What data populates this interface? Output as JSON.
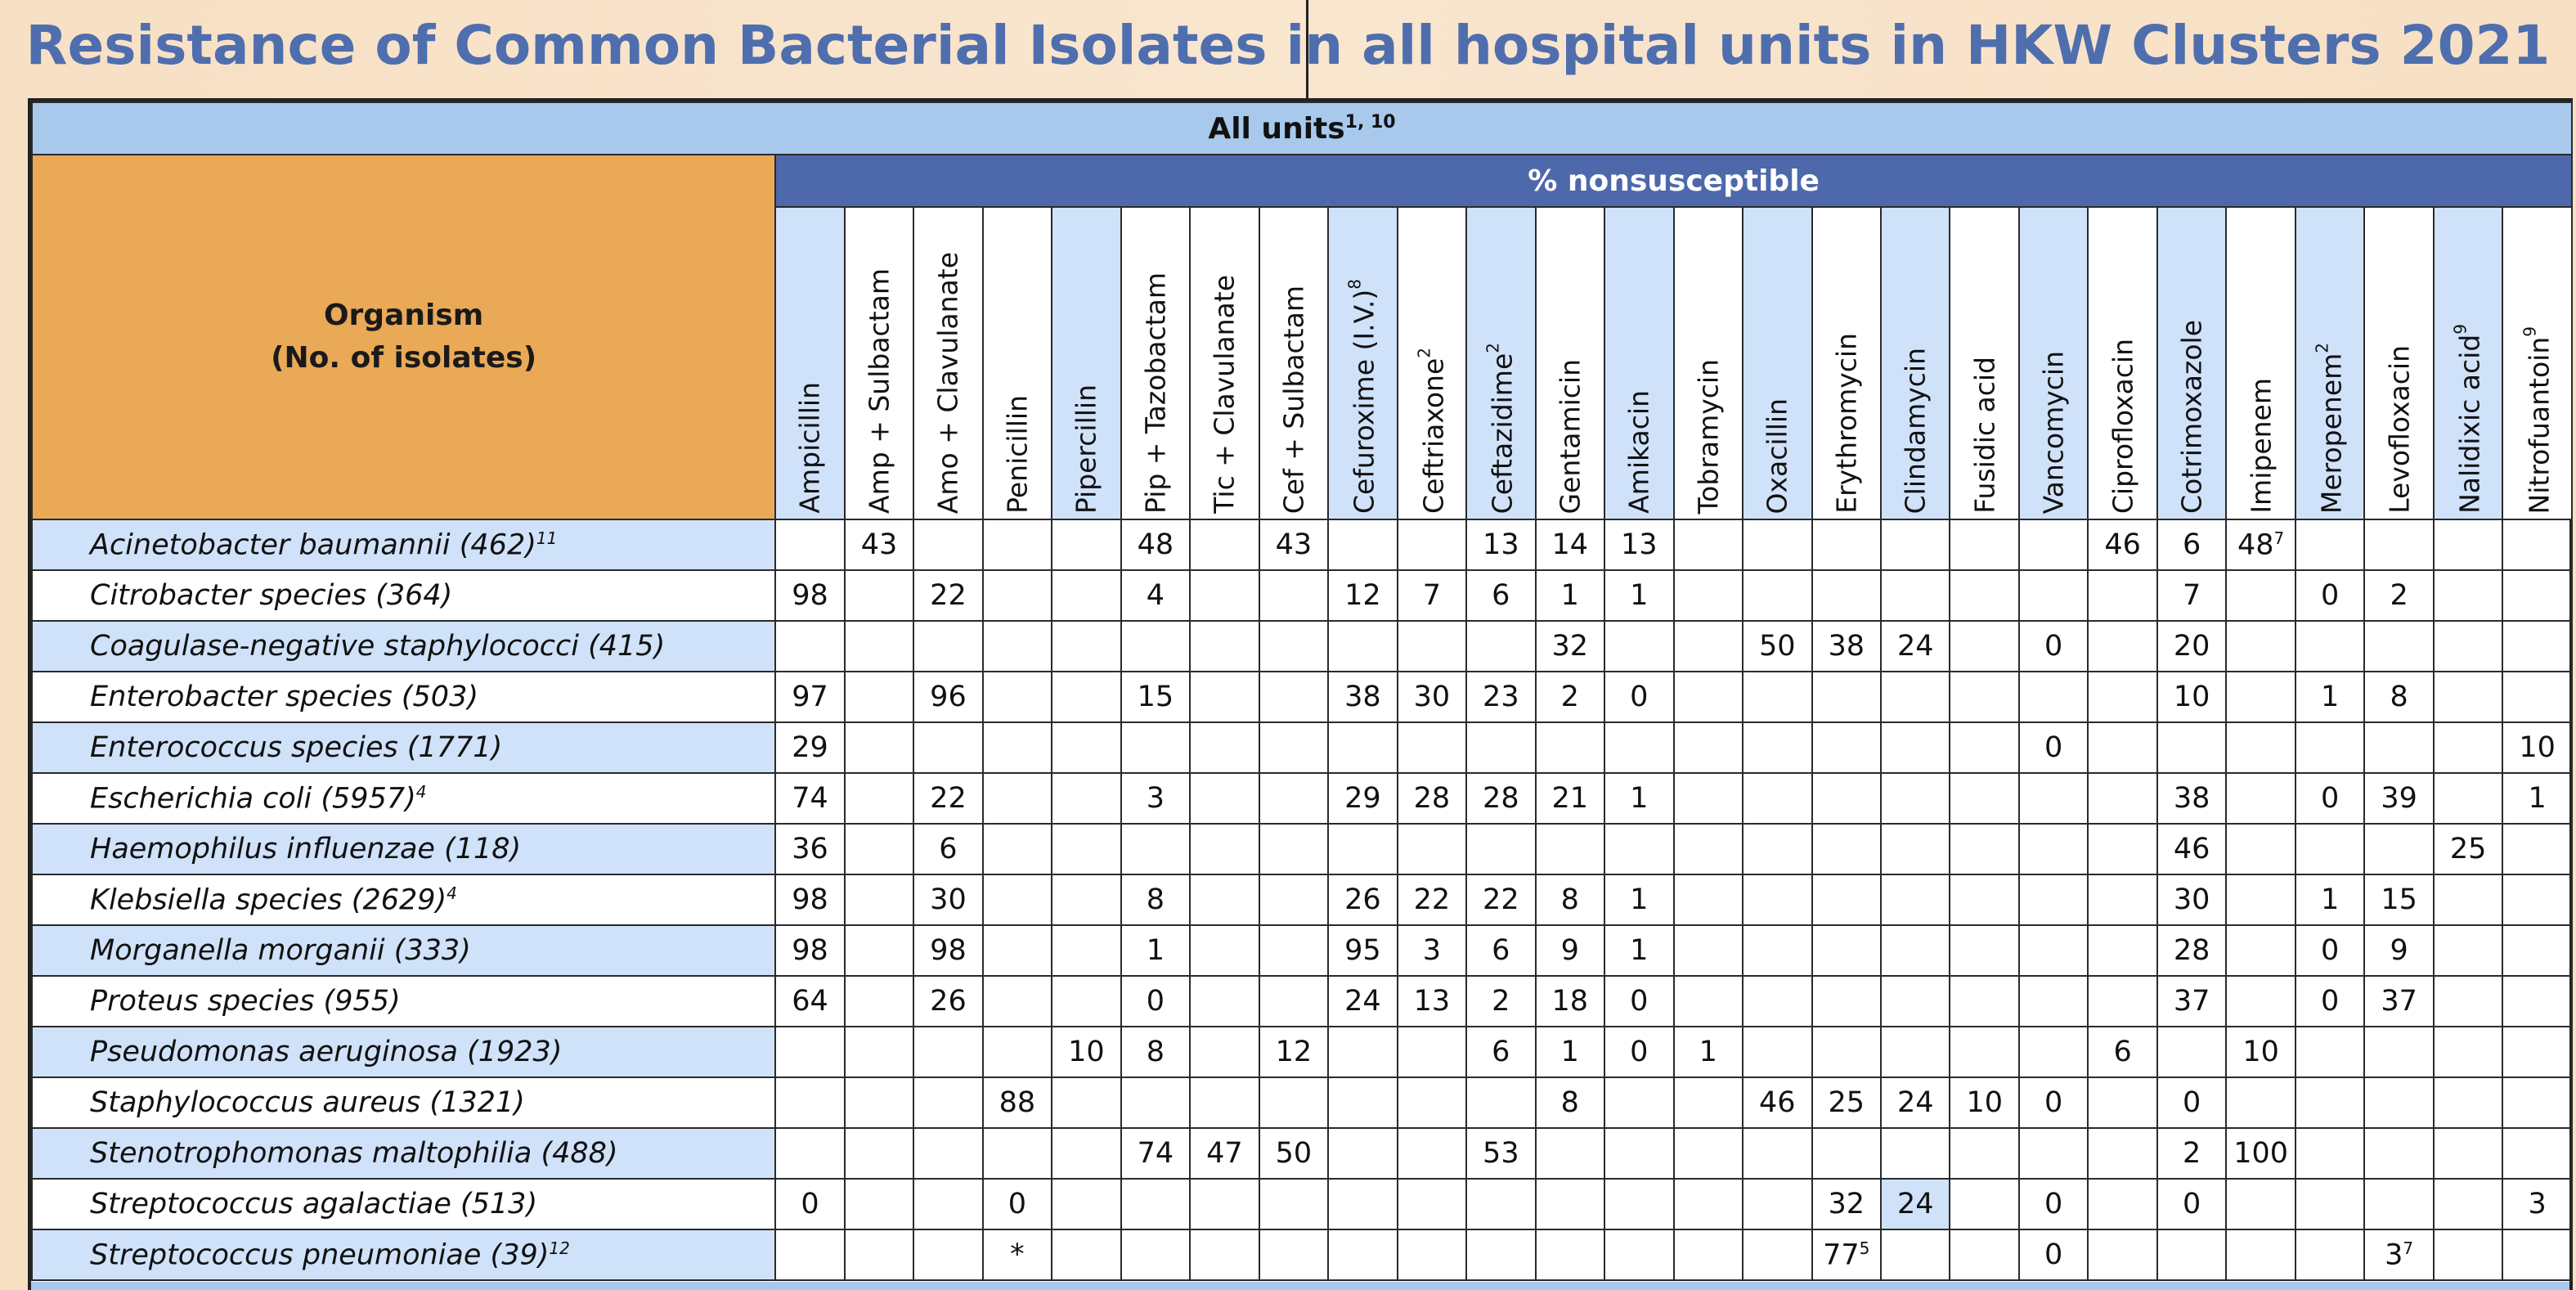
{
  "title": "Resistance of Common Bacterial Isolates in all hospital units in HKW Clusters 2021",
  "table": {
    "all_units_label": "All units",
    "all_units_sup": "1, 10",
    "organism_header_line1": "Organism",
    "organism_header_line2": "(No. of isolates)",
    "nonsusceptible_label": "% nonsusceptible",
    "antibiotics": [
      {
        "name": "Ampicillin",
        "sup": ""
      },
      {
        "name": "Amp + Sulbactam",
        "sup": ""
      },
      {
        "name": "Amo + Clavulanate",
        "sup": ""
      },
      {
        "name": "Penicillin",
        "sup": ""
      },
      {
        "name": "Pipercillin",
        "sup": ""
      },
      {
        "name": "Pip + Tazobactam",
        "sup": ""
      },
      {
        "name": "Tic + Clavulanate",
        "sup": ""
      },
      {
        "name": "Cef + Sulbactam",
        "sup": ""
      },
      {
        "name": "Cefuroxime (I.V.)",
        "sup": "8"
      },
      {
        "name": "Ceftriaxone",
        "sup": "2"
      },
      {
        "name": "Ceftazidime",
        "sup": "2"
      },
      {
        "name": "Gentamicin",
        "sup": ""
      },
      {
        "name": "Amikacin",
        "sup": ""
      },
      {
        "name": "Tobramycin",
        "sup": ""
      },
      {
        "name": "Oxacillin",
        "sup": ""
      },
      {
        "name": "Erythromycin",
        "sup": ""
      },
      {
        "name": "Clindamycin",
        "sup": ""
      },
      {
        "name": "Fusidic acid",
        "sup": ""
      },
      {
        "name": "Vancomycin",
        "sup": ""
      },
      {
        "name": "Ciprofloxacin",
        "sup": ""
      },
      {
        "name": "Cotrimoxazole",
        "sup": ""
      },
      {
        "name": "Imipenem",
        "sup": ""
      },
      {
        "name": "Meropenem",
        "sup": "2"
      },
      {
        "name": "Levofloxacin",
        "sup": ""
      },
      {
        "name": "Nalidixic acid",
        "sup": "9"
      },
      {
        "name": "Nitrofuantoin",
        "sup": "9"
      }
    ],
    "rows": [
      {
        "organism": "Acinetobacter baumannii (462)",
        "sup": "11",
        "values": [
          "",
          "43",
          "",
          "",
          "",
          "48",
          "",
          "43",
          "",
          "",
          "13",
          "14",
          "13",
          "",
          "",
          "",
          "",
          "",
          "",
          "46",
          "6",
          "48",
          "",
          "",
          "",
          ""
        ],
        "value_sups": {
          "21": "7"
        }
      },
      {
        "organism": "Citrobacter species (364)",
        "sup": "",
        "values": [
          "98",
          "",
          "22",
          "",
          "",
          "4",
          "",
          "",
          "12",
          "7",
          "6",
          "1",
          "1",
          "",
          "",
          "",
          "",
          "",
          "",
          "",
          "7",
          "",
          "0",
          "2",
          "",
          ""
        ],
        "value_sups": {}
      },
      {
        "organism": "Coagulase-negative staphylococci (415)",
        "sup": "",
        "values": [
          "",
          "",
          "",
          "",
          "",
          "",
          "",
          "",
          "",
          "",
          "",
          "32",
          "",
          "",
          "50",
          "38",
          "24",
          "",
          "0",
          "",
          "20",
          "",
          "",
          "",
          "",
          ""
        ],
        "value_sups": {}
      },
      {
        "organism": "Enterobacter species (503)",
        "sup": "",
        "values": [
          "97",
          "",
          "96",
          "",
          "",
          "15",
          "",
          "",
          "38",
          "30",
          "23",
          "2",
          "0",
          "",
          "",
          "",
          "",
          "",
          "",
          "",
          "10",
          "",
          "1",
          "8",
          "",
          ""
        ],
        "value_sups": {}
      },
      {
        "organism": "Enterococcus species (1771)",
        "sup": "",
        "values": [
          "29",
          "",
          "",
          "",
          "",
          "",
          "",
          "",
          "",
          "",
          "",
          "",
          "",
          "",
          "",
          "",
          "",
          "",
          "0",
          "",
          "",
          "",
          "",
          "",
          "",
          "10"
        ],
        "value_sups": {}
      },
      {
        "organism": "Escherichia coli (5957)",
        "sup": "4",
        "values": [
          "74",
          "",
          "22",
          "",
          "",
          "3",
          "",
          "",
          "29",
          "28",
          "28",
          "21",
          "1",
          "",
          "",
          "",
          "",
          "",
          "",
          "",
          "38",
          "",
          "0",
          "39",
          "",
          "1"
        ],
        "value_sups": {}
      },
      {
        "organism": "Haemophilus influenzae (118)",
        "sup": "",
        "values": [
          "36",
          "",
          "6",
          "",
          "",
          "",
          "",
          "",
          "",
          "",
          "",
          "",
          "",
          "",
          "",
          "",
          "",
          "",
          "",
          "",
          "46",
          "",
          "",
          "",
          "25",
          ""
        ],
        "value_sups": {}
      },
      {
        "organism": "Klebsiella species (2629)",
        "sup": "4",
        "values": [
          "98",
          "",
          "30",
          "",
          "",
          "8",
          "",
          "",
          "26",
          "22",
          "22",
          "8",
          "1",
          "",
          "",
          "",
          "",
          "",
          "",
          "",
          "30",
          "",
          "1",
          "15",
          "",
          ""
        ],
        "value_sups": {}
      },
      {
        "organism": "Morganella morganii (333)",
        "sup": "",
        "values": [
          "98",
          "",
          "98",
          "",
          "",
          "1",
          "",
          "",
          "95",
          "3",
          "6",
          "9",
          "1",
          "",
          "",
          "",
          "",
          "",
          "",
          "",
          "28",
          "",
          "0",
          "9",
          "",
          ""
        ],
        "value_sups": {}
      },
      {
        "organism": "Proteus species (955)",
        "sup": "",
        "values": [
          "64",
          "",
          "26",
          "",
          "",
          "0",
          "",
          "",
          "24",
          "13",
          "2",
          "18",
          "0",
          "",
          "",
          "",
          "",
          "",
          "",
          "",
          "37",
          "",
          "0",
          "37",
          "",
          ""
        ],
        "value_sups": {}
      },
      {
        "organism": "Pseudomonas aeruginosa (1923)",
        "sup": "",
        "values": [
          "",
          "",
          "",
          "",
          "10",
          "8",
          "",
          "12",
          "",
          "",
          "6",
          "1",
          "0",
          "1",
          "",
          "",
          "",
          "",
          "",
          "6",
          "",
          "10",
          "",
          "",
          "",
          ""
        ],
        "value_sups": {}
      },
      {
        "organism": "Staphylococcus aureus (1321)",
        "sup": "",
        "values": [
          "",
          "",
          "",
          "88",
          "",
          "",
          "",
          "",
          "",
          "",
          "",
          "8",
          "",
          "",
          "46",
          "25",
          "24",
          "10",
          "0",
          "",
          "0",
          "",
          "",
          "",
          "",
          ""
        ],
        "value_sups": {}
      },
      {
        "organism": "Stenotrophomonas maltophilia (488)",
        "sup": "",
        "values": [
          "",
          "",
          "",
          "",
          "",
          "74",
          "47",
          "50",
          "",
          "",
          "53",
          "",
          "",
          "",
          "",
          "",
          "",
          "",
          "",
          "",
          "2",
          "100",
          "",
          "",
          "",
          ""
        ],
        "value_sups": {}
      },
      {
        "organism": "Streptococcus agalactiae (513)",
        "sup": "",
        "values": [
          "0",
          "",
          "",
          "0",
          "",
          "",
          "",
          "",
          "",
          "",
          "",
          "",
          "",
          "",
          "",
          "32",
          "24",
          "",
          "0",
          "",
          "0",
          "",
          "",
          "",
          "",
          "3"
        ],
        "value_sups": {}
      },
      {
        "organism": "Streptococcus pneumoniae (39)",
        "sup": "12",
        "values": [
          "",
          "",
          "",
          "*",
          "",
          "",
          "",
          "",
          "",
          "",
          "",
          "",
          "",
          "",
          "",
          "77",
          "",
          "",
          "0",
          "",
          "",
          "",
          "",
          "3",
          "",
          ""
        ],
        "value_sups": {
          "15": "5",
          "23": "7"
        }
      }
    ]
  },
  "colors": {
    "title": "#4f6eae",
    "header_band": "#a8c9ec",
    "organism_header": "#eaa957",
    "nonsusceptible_band": "#4d69ab",
    "light_blue": "#cfe2f9"
  }
}
